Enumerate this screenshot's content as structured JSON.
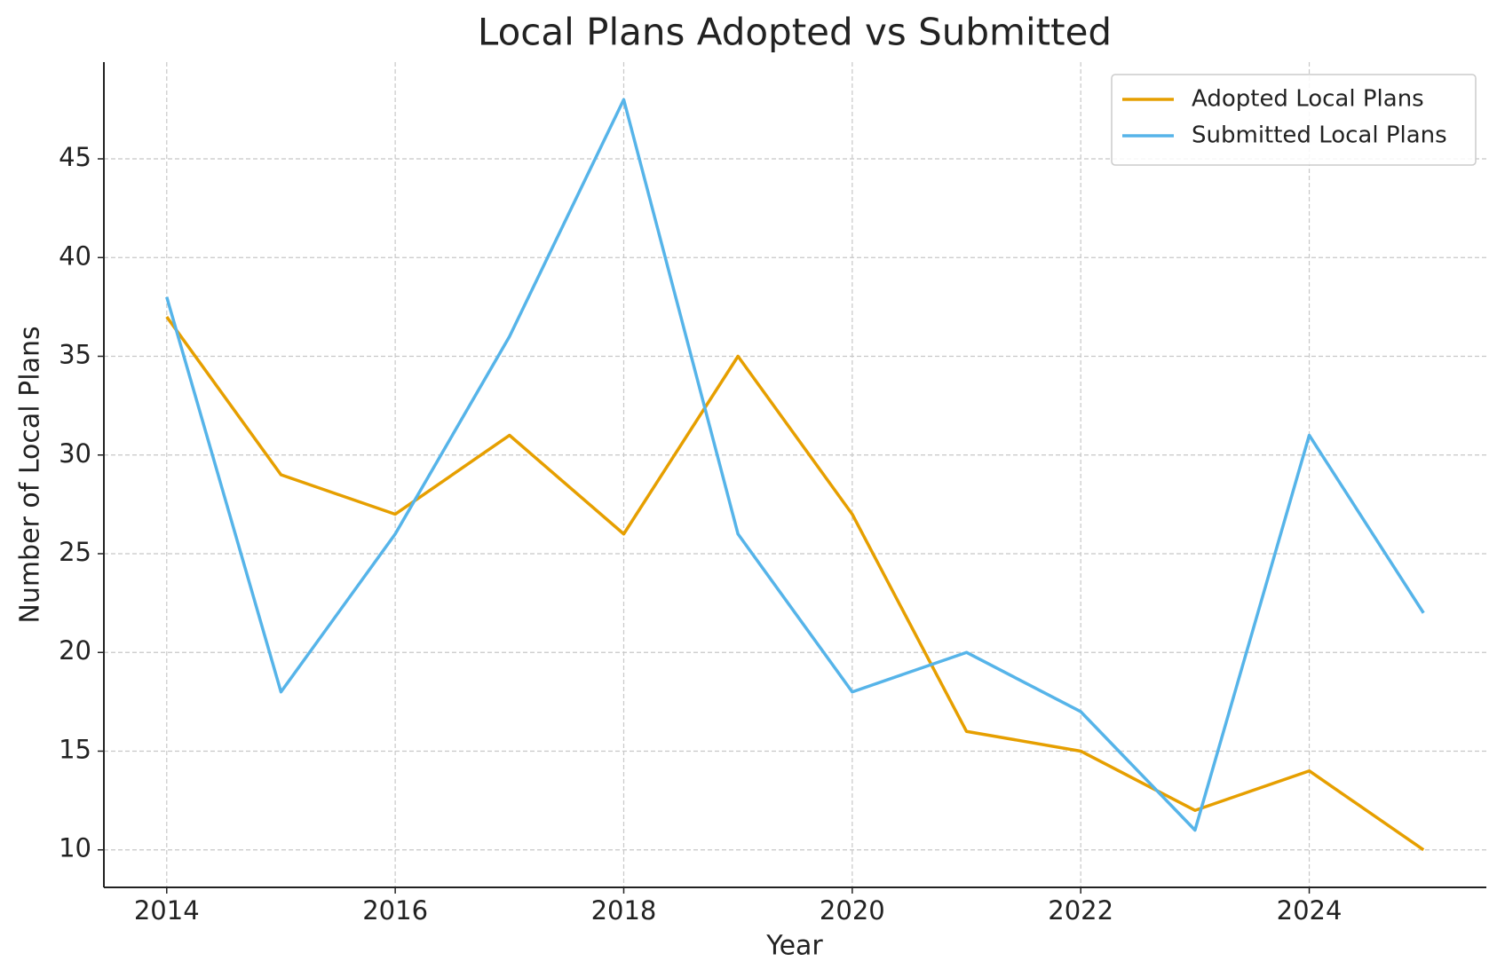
{
  "chart_data": {
    "type": "line",
    "title": "Local Plans Adopted vs Submitted",
    "x_label": "Year",
    "y_label": "Number of Local Plans",
    "x": [
      2014,
      2015,
      2016,
      2017,
      2018,
      2019,
      2020,
      2021,
      2022,
      2023,
      2024,
      2025
    ],
    "series": [
      {
        "name": "Adopted Local Plans",
        "color": "#e69f00",
        "values": [
          37,
          29,
          27,
          31,
          26,
          35,
          27,
          16,
          15,
          12,
          14,
          10
        ]
      },
      {
        "name": "Submitted Local Plans",
        "color": "#56b4e9",
        "values": [
          38,
          18,
          26,
          36,
          48,
          26,
          18,
          20,
          17,
          11,
          31,
          22
        ]
      }
    ],
    "xlim": [
      2013.45,
      2025.55
    ],
    "xticks": [
      2014,
      2016,
      2018,
      2020,
      2022,
      2024
    ],
    "ylim": [
      8.1,
      49.9
    ],
    "yticks": [
      10,
      15,
      20,
      25,
      30,
      35,
      40,
      45
    ],
    "grid": true,
    "legend": "upper right"
  }
}
